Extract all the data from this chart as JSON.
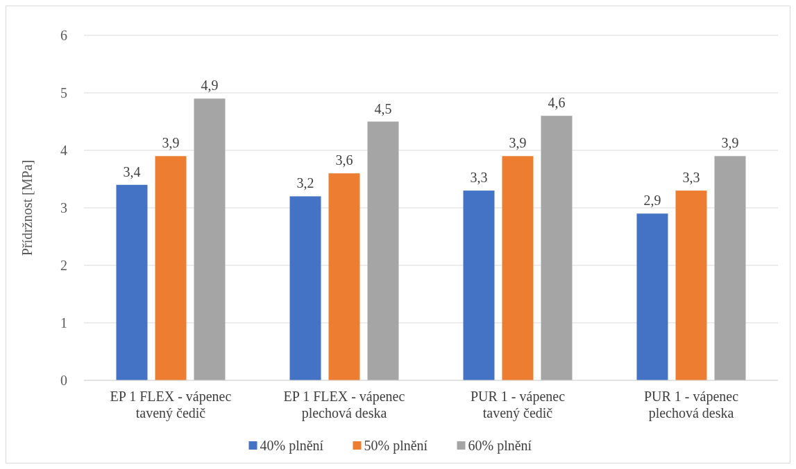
{
  "chart_data": {
    "type": "bar",
    "ylabel": "Přídržnost [MPa]",
    "categories": [
      "EP 1 FLEX - vápenec\ntavený čedič",
      "EP 1 FLEX - vápenec\nplechová deska",
      "PUR 1 - vápenec\ntavený čedič",
      "PUR 1 - vápenec\nplechová deska"
    ],
    "series": [
      {
        "name": "40% plnění",
        "color": "#4472c4",
        "values": [
          3.4,
          3.2,
          3.3,
          2.9
        ],
        "value_labels": [
          "3,4",
          "3,2",
          "3,3",
          "2,9"
        ]
      },
      {
        "name": "50% plnění",
        "color": "#ed7d31",
        "values": [
          3.9,
          3.6,
          3.9,
          3.3
        ],
        "value_labels": [
          "3,9",
          "3,6",
          "3,9",
          "3,3"
        ]
      },
      {
        "name": "60% plnění",
        "color": "#a5a5a5",
        "values": [
          4.9,
          4.5,
          4.6,
          3.9
        ],
        "value_labels": [
          "4,9",
          "4,5",
          "4,6",
          "3,9"
        ]
      }
    ],
    "ylim": [
      0,
      6
    ],
    "yticks": [
      0,
      1,
      2,
      3,
      4,
      5,
      6
    ],
    "grid": "y",
    "legend": "bottom"
  }
}
